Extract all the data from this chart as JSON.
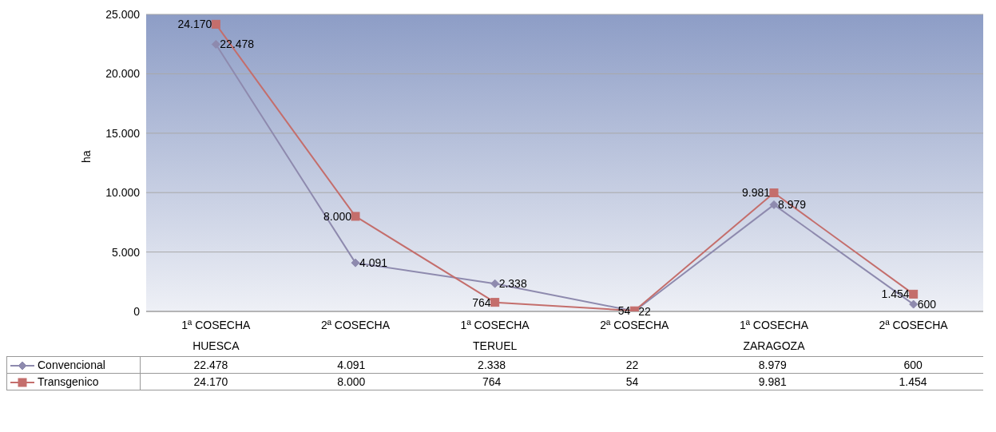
{
  "chart_data": {
    "type": "line",
    "ylabel": "ha",
    "categories": [
      "1ª COSECHA",
      "2ª COSECHA",
      "1ª COSECHA",
      "2ª COSECHA",
      "1ª COSECHA",
      "2ª COSECHA"
    ],
    "annotations": [
      "HUESCA",
      "TERUEL",
      "ZARAGOZA"
    ],
    "series": [
      {
        "name": "Convencional",
        "color": "#8e8aae",
        "marker": "diamond",
        "values": [
          22478,
          4091,
          2338,
          22,
          8979,
          600
        ],
        "value_labels": [
          "22.478",
          "4.091",
          "2.338",
          "22",
          "8.979",
          "600"
        ]
      },
      {
        "name": "Transgenico",
        "color": "#c46e6c",
        "marker": "square",
        "values": [
          24170,
          8000,
          764,
          54,
          9981,
          1454
        ],
        "value_labels": [
          "24.170",
          "8.000",
          "764",
          "54",
          "9.981",
          "1.454"
        ]
      }
    ],
    "ylim": [
      0,
      25000
    ],
    "yticks": [
      {
        "value": 0,
        "label": "0"
      },
      {
        "value": 5000,
        "label": "5.000"
      },
      {
        "value": 10000,
        "label": "10.000"
      },
      {
        "value": 15000,
        "label": "15.000"
      },
      {
        "value": 20000,
        "label": "20.000"
      },
      {
        "value": 25000,
        "label": "25.000"
      }
    ],
    "grid": "y",
    "legend": "bottom",
    "line_style": "solid"
  }
}
